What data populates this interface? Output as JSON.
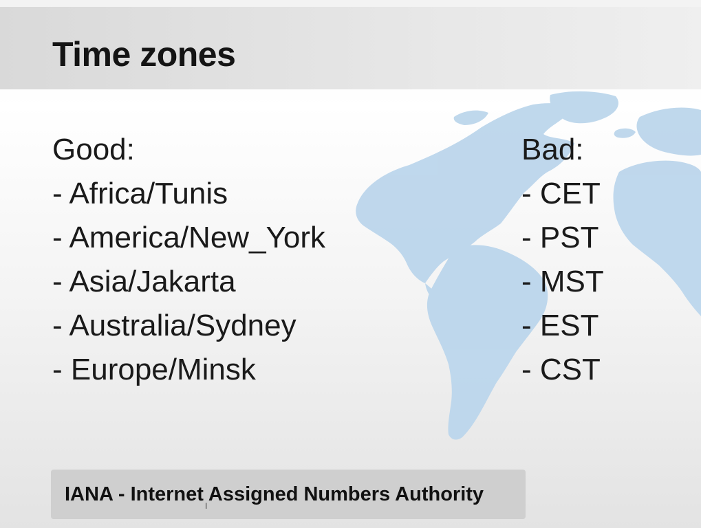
{
  "slide": {
    "title": "Time zones",
    "good": {
      "heading": "Good:",
      "items": [
        "- Africa/Tunis",
        "- America/New_York",
        "- Asia/Jakarta",
        "- Australia/Sydney",
        "- Europe/Minsk"
      ]
    },
    "bad": {
      "heading": "Bad:",
      "items": [
        "- CET",
        "- PST",
        "- MST",
        "- EST",
        "- CST"
      ]
    },
    "footer": "IANA - Internet Assigned Numbers Authority",
    "map_color": "#bcd6ec"
  }
}
